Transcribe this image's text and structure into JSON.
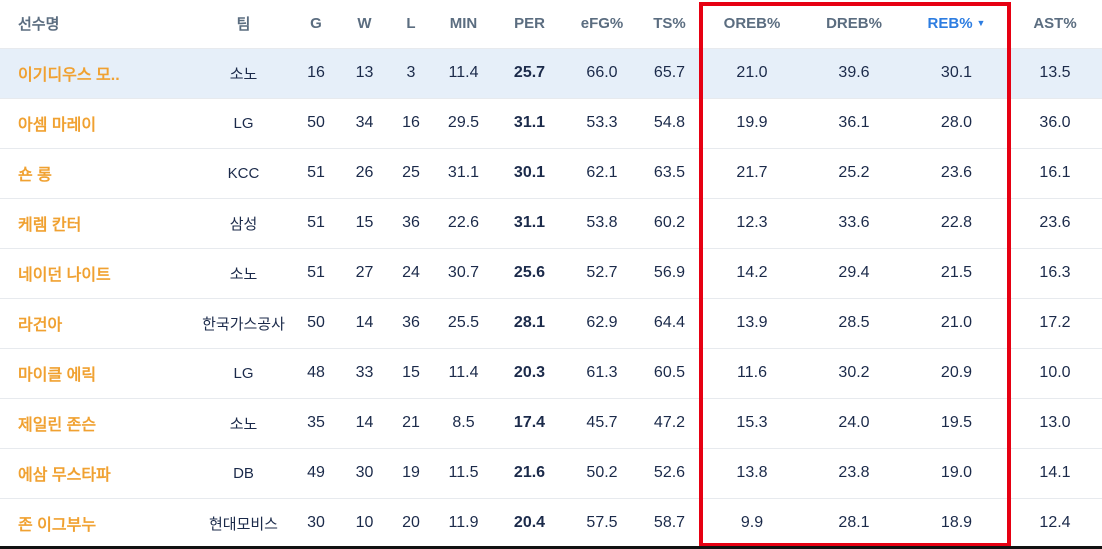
{
  "table": {
    "columns": [
      {
        "key": "name",
        "label": "선수명"
      },
      {
        "key": "team",
        "label": "팀"
      },
      {
        "key": "g",
        "label": "G"
      },
      {
        "key": "w",
        "label": "W"
      },
      {
        "key": "l",
        "label": "L"
      },
      {
        "key": "min",
        "label": "MIN"
      },
      {
        "key": "per",
        "label": "PER"
      },
      {
        "key": "efg",
        "label": "eFG%"
      },
      {
        "key": "ts",
        "label": "TS%"
      },
      {
        "key": "oreb",
        "label": "OREB%"
      },
      {
        "key": "dreb",
        "label": "DREB%"
      },
      {
        "key": "reb",
        "label": "REB%",
        "sorted": true
      },
      {
        "key": "ast",
        "label": "AST%"
      }
    ],
    "sort_indicator": "▼",
    "rows": [
      {
        "highlighted": true,
        "cells": [
          "이기디우스 모..",
          "소노",
          "16",
          "13",
          "3",
          "11.4",
          "25.7",
          "66.0",
          "65.7",
          "21.0",
          "39.6",
          "30.1",
          "13.5"
        ]
      },
      {
        "highlighted": false,
        "cells": [
          "아셈 마레이",
          "LG",
          "50",
          "34",
          "16",
          "29.5",
          "31.1",
          "53.3",
          "54.8",
          "19.9",
          "36.1",
          "28.0",
          "36.0"
        ]
      },
      {
        "highlighted": false,
        "cells": [
          "숀 롱",
          "KCC",
          "51",
          "26",
          "25",
          "31.1",
          "30.1",
          "62.1",
          "63.5",
          "21.7",
          "25.2",
          "23.6",
          "16.1"
        ]
      },
      {
        "highlighted": false,
        "cells": [
          "케렘 칸터",
          "삼성",
          "51",
          "15",
          "36",
          "22.6",
          "31.1",
          "53.8",
          "60.2",
          "12.3",
          "33.6",
          "22.8",
          "23.6"
        ]
      },
      {
        "highlighted": false,
        "cells": [
          "네이던 나이트",
          "소노",
          "51",
          "27",
          "24",
          "30.7",
          "25.6",
          "52.7",
          "56.9",
          "14.2",
          "29.4",
          "21.5",
          "16.3"
        ]
      },
      {
        "highlighted": false,
        "cells": [
          "라건아",
          "한국가스공사",
          "50",
          "14",
          "36",
          "25.5",
          "28.1",
          "62.9",
          "64.4",
          "13.9",
          "28.5",
          "21.0",
          "17.2"
        ]
      },
      {
        "highlighted": false,
        "cells": [
          "마이클 에릭",
          "LG",
          "48",
          "33",
          "15",
          "11.4",
          "20.3",
          "61.3",
          "60.5",
          "11.6",
          "30.2",
          "20.9",
          "10.0"
        ]
      },
      {
        "highlighted": false,
        "cells": [
          "제일린 존슨",
          "소노",
          "35",
          "14",
          "21",
          "8.5",
          "17.4",
          "45.7",
          "47.2",
          "15.3",
          "24.0",
          "19.5",
          "13.0"
        ]
      },
      {
        "highlighted": false,
        "cells": [
          "에삼 무스타파",
          "DB",
          "49",
          "30",
          "19",
          "11.5",
          "21.6",
          "50.2",
          "52.6",
          "13.8",
          "23.8",
          "19.0",
          "14.1"
        ]
      },
      {
        "highlighted": false,
        "cells": [
          "존 이그부누",
          "현대모비스",
          "30",
          "10",
          "20",
          "11.9",
          "20.4",
          "57.5",
          "58.7",
          "9.9",
          "28.1",
          "18.9",
          "12.4"
        ]
      }
    ]
  },
  "annotation": {
    "type": "highlight-box",
    "color": "#e60012",
    "enclosed_columns": [
      "OREB%",
      "DREB%",
      "REB%"
    ]
  },
  "colors": {
    "header_text": "#5b6d80",
    "sorted_header_text": "#2d7de1",
    "player_name": "#f0a131",
    "cell_text": "#1b2a4a",
    "highlighted_row_bg": "#e6eff9",
    "row_divider": "#e7eaee",
    "annotation_red": "#e60012"
  }
}
